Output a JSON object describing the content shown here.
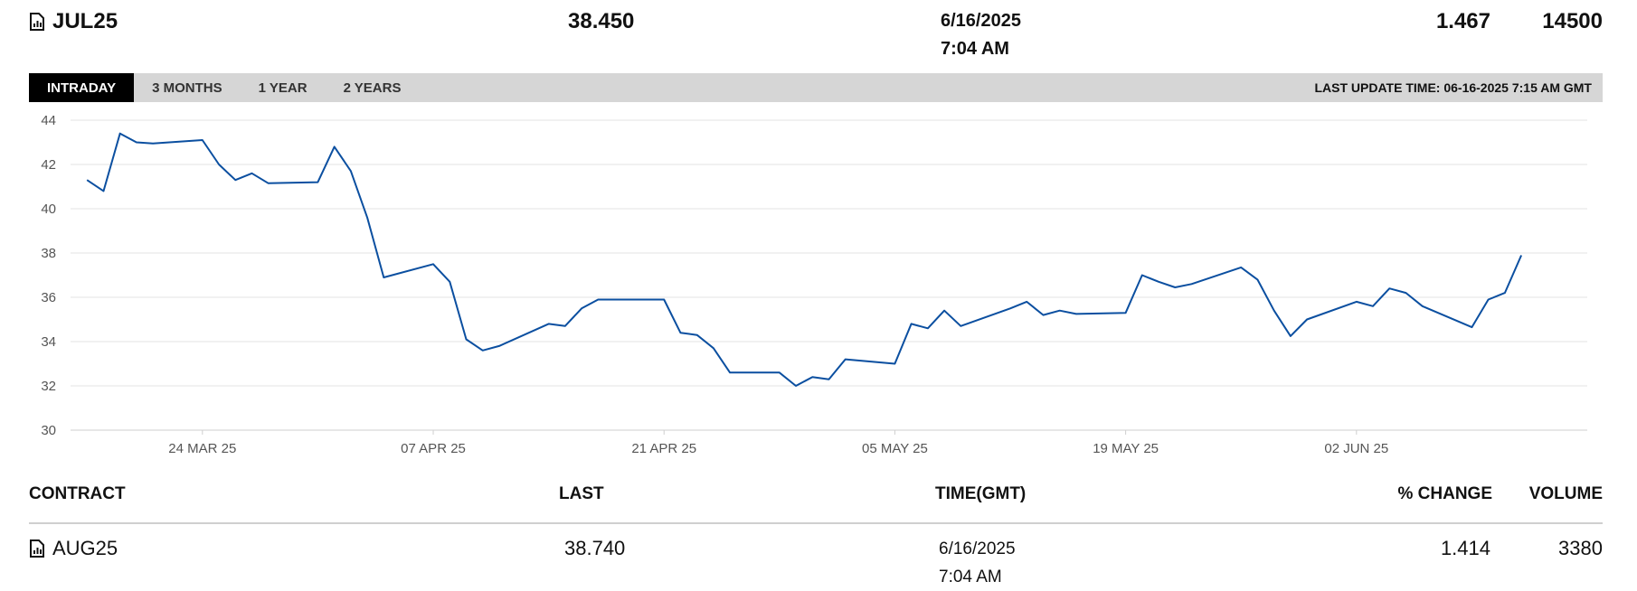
{
  "top_contract": {
    "symbol": "JUL25",
    "icon": "document-chart-icon",
    "last": "38.450",
    "date": "6/16/2025",
    "time": "7:04 AM",
    "pct_change": "1.467",
    "volume": "14500"
  },
  "tabs": [
    {
      "label": "INTRADAY",
      "active": true
    },
    {
      "label": "3 MONTHS",
      "active": false
    },
    {
      "label": "1 YEAR",
      "active": false
    },
    {
      "label": "2 YEARS",
      "active": false
    }
  ],
  "last_update": "LAST UPDATE TIME: 06-16-2025 7:15 AM GMT",
  "colors": {
    "line": "#0b4fa0",
    "tab_bar": "#d6d6d6",
    "tab_active": "#000000",
    "grid": "#e3e3e3"
  },
  "chart_data": {
    "type": "line",
    "title": "",
    "xlabel": "",
    "ylabel": "",
    "ylim": [
      30,
      44
    ],
    "yticks": [
      44,
      42,
      40,
      38,
      36,
      34,
      32,
      30
    ],
    "xtick_labels": [
      "24 MAR 25",
      "07 APR 25",
      "21 APR 25",
      "05 MAY 25",
      "19 MAY 25",
      "02 JUN 25"
    ],
    "xtick_dates": [
      "2025-03-24",
      "2025-04-07",
      "2025-04-21",
      "2025-05-05",
      "2025-05-19",
      "2025-06-02"
    ],
    "xlim": [
      "2025-03-16",
      "2025-06-16"
    ],
    "grid": true,
    "series": [
      {
        "x": [
          "2025-03-17",
          "2025-03-18",
          "2025-03-19",
          "2025-03-20",
          "2025-03-21",
          "2025-03-24",
          "2025-03-25",
          "2025-03-26",
          "2025-03-27",
          "2025-03-28",
          "2025-03-31",
          "2025-04-01",
          "2025-04-02",
          "2025-04-03",
          "2025-04-04",
          "2025-04-07",
          "2025-04-08",
          "2025-04-09",
          "2025-04-10",
          "2025-04-11",
          "2025-04-14",
          "2025-04-15",
          "2025-04-16",
          "2025-04-17",
          "2025-04-18",
          "2025-04-21",
          "2025-04-22",
          "2025-04-23",
          "2025-04-24",
          "2025-04-25",
          "2025-04-28",
          "2025-04-29",
          "2025-04-30",
          "2025-05-01",
          "2025-05-02",
          "2025-05-05",
          "2025-05-06",
          "2025-05-07",
          "2025-05-08",
          "2025-05-09",
          "2025-05-12",
          "2025-05-13",
          "2025-05-14",
          "2025-05-15",
          "2025-05-16",
          "2025-05-19",
          "2025-05-20",
          "2025-05-21",
          "2025-05-22",
          "2025-05-23",
          "2025-05-26",
          "2025-05-27",
          "2025-05-28",
          "2025-05-29",
          "2025-05-30",
          "2025-06-02",
          "2025-06-03",
          "2025-06-04",
          "2025-06-05",
          "2025-06-06",
          "2025-06-09",
          "2025-06-10",
          "2025-06-11",
          "2025-06-12",
          "2025-06-13"
        ],
        "values": [
          41.3,
          40.8,
          43.4,
          43.0,
          42.95,
          43.1,
          42.0,
          41.3,
          41.6,
          41.15,
          41.2,
          42.8,
          41.7,
          39.6,
          36.9,
          37.5,
          36.7,
          34.1,
          33.6,
          33.8,
          34.8,
          34.7,
          35.5,
          35.9,
          35.9,
          35.9,
          34.4,
          34.3,
          33.7,
          32.6,
          32.6,
          32.0,
          32.4,
          32.3,
          33.2,
          33.0,
          34.8,
          34.6,
          35.4,
          34.7,
          35.5,
          35.8,
          35.2,
          35.4,
          35.25,
          35.3,
          37.0,
          36.7,
          36.45,
          36.6,
          37.35,
          36.8,
          35.4,
          34.25,
          35.0,
          35.8,
          35.6,
          36.4,
          36.2,
          35.6,
          34.65,
          35.9,
          36.2,
          37.9,
          null
        ]
      }
    ]
  },
  "table": {
    "headers": {
      "contract": "CONTRACT",
      "last": "LAST",
      "time": "TIME(GMT)",
      "pct_change": "% CHANGE",
      "volume": "VOLUME"
    },
    "rows": [
      {
        "symbol": "AUG25",
        "icon": "document-chart-icon",
        "last": "38.740",
        "date": "6/16/2025",
        "time": "7:04 AM",
        "pct_change": "1.414",
        "volume": "3380"
      }
    ]
  }
}
